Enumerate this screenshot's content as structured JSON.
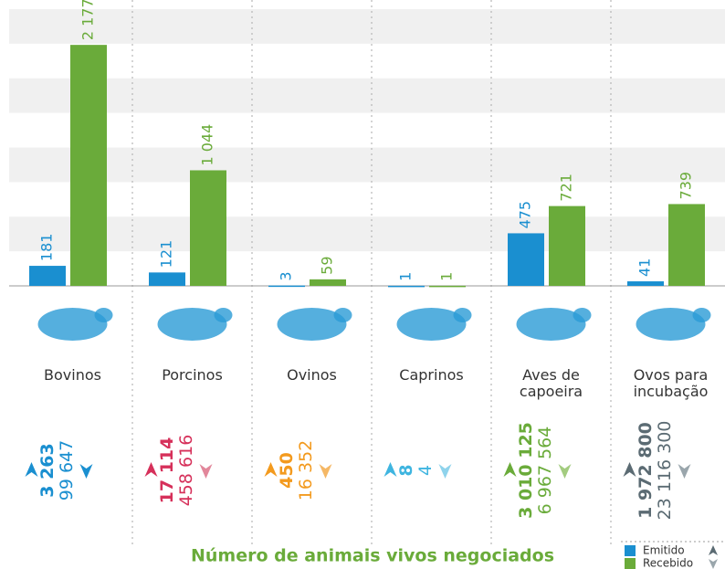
{
  "chart_data": {
    "type": "bar",
    "title": "Número de animais vivos negociados",
    "categories": [
      "Bovinos",
      "Porcinos",
      "Ovinos",
      "Caprinos",
      "Aves de capoeira",
      "Ovos para incubação"
    ],
    "series": [
      {
        "name": "Emitido",
        "color": "#1a8fd0",
        "values": [
          181,
          121,
          3,
          1,
          475,
          41
        ]
      },
      {
        "name": "Recebido",
        "color": "#6aab3a",
        "values": [
          2177,
          1044,
          59,
          1,
          721,
          739
        ],
        "value_labels": [
          "2 177",
          "1 044",
          "59",
          "1",
          "721",
          "739"
        ]
      }
    ],
    "ylim": [
      0,
      2500
    ],
    "totals": [
      {
        "emitido": "3 263",
        "recebido": "99 647",
        "color": "#1a8fd0",
        "light": "#1a8fd0"
      },
      {
        "emitido": "17 114",
        "recebido": "458 616",
        "color": "#d6305a",
        "light": "#e2879b"
      },
      {
        "emitido": "450",
        "recebido": "16 352",
        "color": "#f39a1e",
        "light": "#f5b866"
      },
      {
        "emitido": "8",
        "recebido": "4",
        "color": "#3fb5e0",
        "light": "#8fd3ec"
      },
      {
        "emitido": "3 010 125",
        "recebido": "6 967 564",
        "color": "#6aab3a",
        "light": "#a3cc80"
      },
      {
        "emitido": "1 972 800",
        "recebido": "23 116 300",
        "color": "#5b6b73",
        "light": "#9aa6ac"
      }
    ]
  }
}
